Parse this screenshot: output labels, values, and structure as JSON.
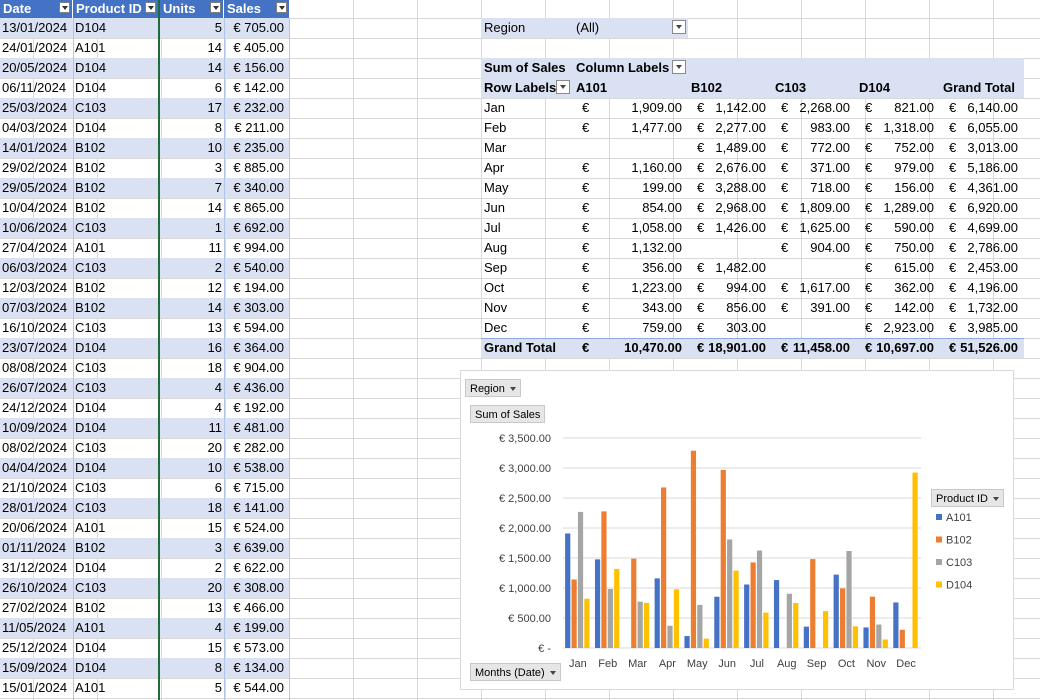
{
  "source_table": {
    "headers": [
      "Date",
      "Product ID",
      "Units",
      "Sales"
    ],
    "rows": [
      [
        "13/01/2024",
        "D104",
        "5",
        "€ 705.00"
      ],
      [
        "24/01/2024",
        "A101",
        "14",
        "€ 405.00"
      ],
      [
        "20/05/2024",
        "D104",
        "14",
        "€ 156.00"
      ],
      [
        "06/11/2024",
        "D104",
        "6",
        "€ 142.00"
      ],
      [
        "25/03/2024",
        "C103",
        "17",
        "€ 232.00"
      ],
      [
        "04/03/2024",
        "D104",
        "8",
        "€ 211.00"
      ],
      [
        "14/01/2024",
        "B102",
        "10",
        "€ 235.00"
      ],
      [
        "29/02/2024",
        "B102",
        "3",
        "€ 885.00"
      ],
      [
        "29/05/2024",
        "B102",
        "7",
        "€ 340.00"
      ],
      [
        "10/04/2024",
        "B102",
        "14",
        "€ 865.00"
      ],
      [
        "10/06/2024",
        "C103",
        "1",
        "€ 692.00"
      ],
      [
        "27/04/2024",
        "A101",
        "11",
        "€ 994.00"
      ],
      [
        "06/03/2024",
        "C103",
        "2",
        "€ 540.00"
      ],
      [
        "12/03/2024",
        "B102",
        "12",
        "€ 194.00"
      ],
      [
        "07/03/2024",
        "B102",
        "14",
        "€ 303.00"
      ],
      [
        "16/10/2024",
        "C103",
        "13",
        "€ 594.00"
      ],
      [
        "23/07/2024",
        "D104",
        "16",
        "€ 364.00"
      ],
      [
        "08/08/2024",
        "C103",
        "18",
        "€ 904.00"
      ],
      [
        "26/07/2024",
        "C103",
        "4",
        "€ 436.00"
      ],
      [
        "24/12/2024",
        "D104",
        "4",
        "€ 192.00"
      ],
      [
        "10/09/2024",
        "D104",
        "11",
        "€ 481.00"
      ],
      [
        "08/02/2024",
        "C103",
        "20",
        "€ 282.00"
      ],
      [
        "04/04/2024",
        "D104",
        "10",
        "€ 538.00"
      ],
      [
        "21/10/2024",
        "C103",
        "6",
        "€ 715.00"
      ],
      [
        "28/01/2024",
        "C103",
        "18",
        "€ 141.00"
      ],
      [
        "20/06/2024",
        "A101",
        "15",
        "€ 524.00"
      ],
      [
        "01/11/2024",
        "B102",
        "3",
        "€ 639.00"
      ],
      [
        "31/12/2024",
        "D104",
        "2",
        "€ 622.00"
      ],
      [
        "26/10/2024",
        "C103",
        "20",
        "€ 308.00"
      ],
      [
        "27/02/2024",
        "B102",
        "13",
        "€ 466.00"
      ],
      [
        "11/05/2024",
        "A101",
        "4",
        "€ 199.00"
      ],
      [
        "25/12/2024",
        "D104",
        "15",
        "€ 573.00"
      ],
      [
        "15/09/2024",
        "D104",
        "8",
        "€ 134.00"
      ],
      [
        "15/01/2024",
        "A101",
        "5",
        "€ 544.00"
      ]
    ]
  },
  "pivot": {
    "filter_label": "Region",
    "filter_value": "(All)",
    "values_label": "Sum of Sales",
    "column_labels": "Column Labels",
    "row_labels": "Row Labels",
    "columns": [
      "A101",
      "B102",
      "C103",
      "D104",
      "Grand Total"
    ],
    "rows": [
      {
        "label": "Jan",
        "cells": [
          "1,909.00",
          "1,142.00",
          "2,268.00",
          "821.00",
          "6,140.00"
        ]
      },
      {
        "label": "Feb",
        "cells": [
          "1,477.00",
          "2,277.00",
          "983.00",
          "1,318.00",
          "6,055.00"
        ]
      },
      {
        "label": "Mar",
        "cells": [
          "",
          "1,489.00",
          "772.00",
          "752.00",
          "3,013.00"
        ]
      },
      {
        "label": "Apr",
        "cells": [
          "1,160.00",
          "2,676.00",
          "371.00",
          "979.00",
          "5,186.00"
        ]
      },
      {
        "label": "May",
        "cells": [
          "199.00",
          "3,288.00",
          "718.00",
          "156.00",
          "4,361.00"
        ]
      },
      {
        "label": "Jun",
        "cells": [
          "854.00",
          "2,968.00",
          "1,809.00",
          "1,289.00",
          "6,920.00"
        ]
      },
      {
        "label": "Jul",
        "cells": [
          "1,058.00",
          "1,426.00",
          "1,625.00",
          "590.00",
          "4,699.00"
        ]
      },
      {
        "label": "Aug",
        "cells": [
          "1,132.00",
          "",
          "904.00",
          "750.00",
          "2,786.00"
        ]
      },
      {
        "label": "Sep",
        "cells": [
          "356.00",
          "1,482.00",
          "",
          "615.00",
          "2,453.00"
        ]
      },
      {
        "label": "Oct",
        "cells": [
          "1,223.00",
          "994.00",
          "1,617.00",
          "362.00",
          "4,196.00"
        ]
      },
      {
        "label": "Nov",
        "cells": [
          "343.00",
          "856.00",
          "391.00",
          "142.00",
          "1,732.00"
        ]
      },
      {
        "label": "Dec",
        "cells": [
          "759.00",
          "303.00",
          "",
          "2,923.00",
          "3,985.00"
        ]
      }
    ],
    "grand_total": {
      "label": "Grand Total",
      "cells": [
        "10,470.00",
        "18,901.00",
        "11,458.00",
        "10,697.00",
        "51,526.00"
      ]
    },
    "currency_symbol": "€"
  },
  "chart_buttons": {
    "region": "Region",
    "sum_of_sales": "Sum of Sales",
    "product_id": "Product ID",
    "months": "Months (Date)"
  },
  "chart_data": {
    "type": "bar",
    "categories": [
      "Jan",
      "Feb",
      "Mar",
      "Apr",
      "May",
      "Jun",
      "Jul",
      "Aug",
      "Sep",
      "Oct",
      "Nov",
      "Dec"
    ],
    "ylim": [
      0,
      3500
    ],
    "yticks": [
      "€ -",
      "€ 500.00",
      "€ 1,000.00",
      "€ 1,500.00",
      "€ 2,000.00",
      "€ 2,500.00",
      "€ 3,000.00",
      "€ 3,500.00"
    ],
    "grid": true,
    "legend": "right",
    "series": [
      {
        "name": "A101",
        "color": "#4472c4",
        "values": [
          1909,
          1477,
          0,
          1160,
          199,
          854,
          1058,
          1132,
          356,
          1223,
          343,
          759
        ]
      },
      {
        "name": "B102",
        "color": "#ed7d31",
        "values": [
          1142,
          2277,
          1489,
          2676,
          3288,
          2968,
          1426,
          0,
          1482,
          994,
          856,
          303
        ]
      },
      {
        "name": "C103",
        "color": "#a5a5a5",
        "values": [
          2268,
          983,
          772,
          371,
          718,
          1809,
          1625,
          904,
          0,
          1617,
          391,
          0
        ]
      },
      {
        "name": "D104",
        "color": "#ffc000",
        "values": [
          821,
          1318,
          752,
          979,
          156,
          1289,
          590,
          750,
          615,
          362,
          142,
          2923
        ]
      }
    ]
  }
}
